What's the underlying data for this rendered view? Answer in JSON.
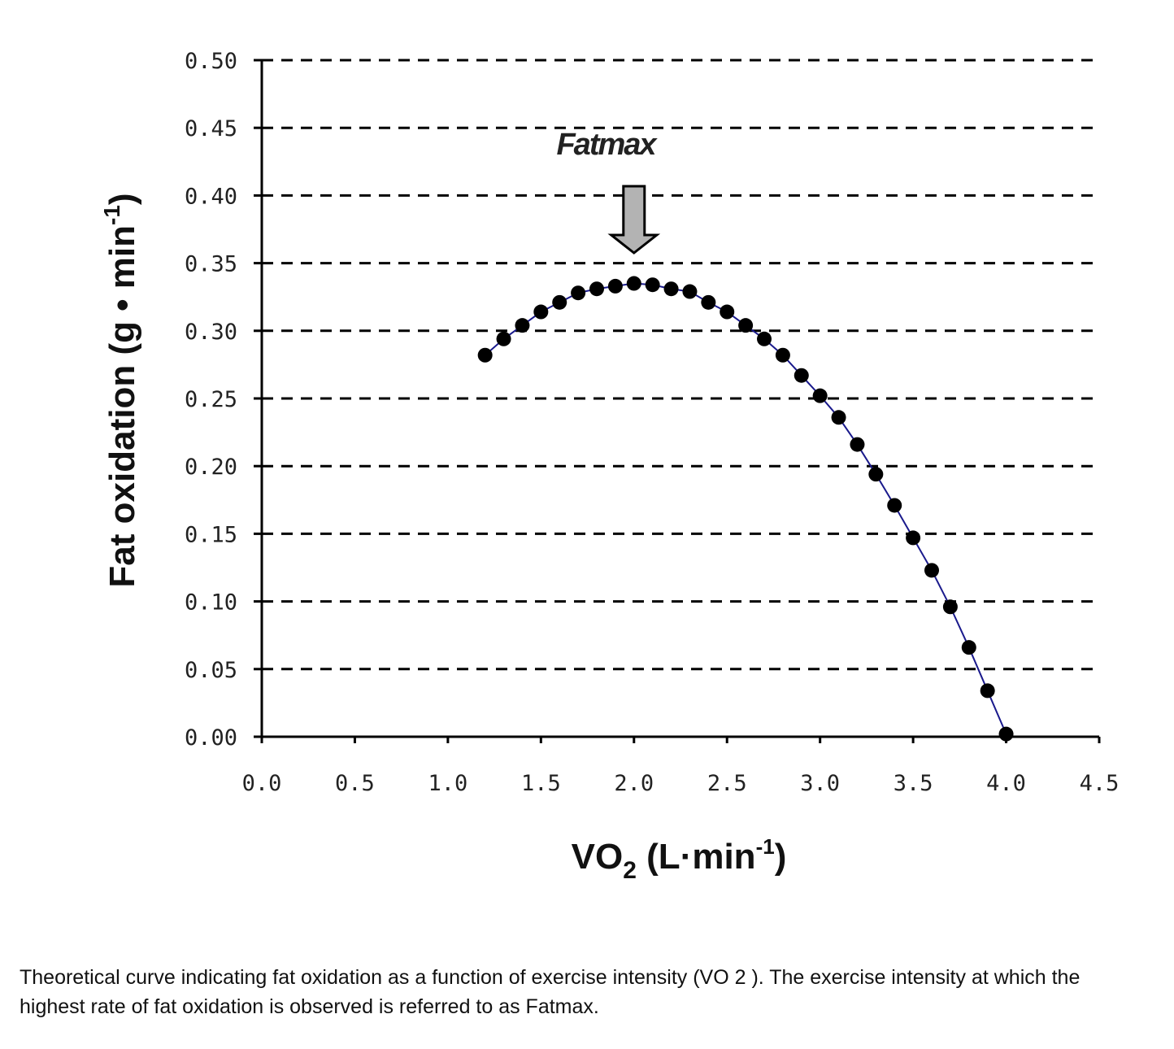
{
  "chart_data": {
    "type": "scatter",
    "title": "",
    "xlabel": "VO",
    "xlabel_sub": "2",
    "xlabel_unit_open": " (L",
    "xlabel_unit_dot": "·",
    "xlabel_unit_min": "min",
    "xlabel_unit_sup": "-1",
    "xlabel_unit_close": ")",
    "ylabel": "Fat oxidation (g • min",
    "ylabel_sup": "-1",
    "ylabel_close": ")",
    "xlim": [
      0,
      4.5
    ],
    "ylim": [
      0,
      0.5
    ],
    "xticks": [
      "0.0",
      "0.5",
      "1.0",
      "1.5",
      "2.0",
      "2.5",
      "3.0",
      "3.5",
      "4.0",
      "4.5"
    ],
    "yticks": [
      "0.00",
      "0.05",
      "0.10",
      "0.15",
      "0.20",
      "0.25",
      "0.30",
      "0.35",
      "0.40",
      "0.45",
      "0.50"
    ],
    "grid": "horizontal dashed",
    "marker_color": "#000000",
    "line_color": "#1a1a8c",
    "annotation": {
      "text": "Fatmax",
      "x": 2.0,
      "arrow_color": "#b3b3b3"
    },
    "x": [
      1.2,
      1.3,
      1.4,
      1.5,
      1.6,
      1.7,
      1.8,
      1.9,
      2.0,
      2.1,
      2.2,
      2.3,
      2.4,
      2.5,
      2.6,
      2.7,
      2.8,
      2.9,
      3.0,
      3.1,
      3.2,
      3.3,
      3.4,
      3.5,
      3.6,
      3.7,
      3.8,
      3.9,
      4.0
    ],
    "y": [
      0.282,
      0.294,
      0.304,
      0.314,
      0.321,
      0.328,
      0.331,
      0.333,
      0.335,
      0.334,
      0.331,
      0.329,
      0.321,
      0.314,
      0.304,
      0.294,
      0.282,
      0.267,
      0.252,
      0.236,
      0.216,
      0.194,
      0.171,
      0.147,
      0.123,
      0.096,
      0.066,
      0.034,
      0.002
    ]
  },
  "caption": "Theoretical curve indicating fat oxidation as a function of exercise intensity (VO 2 ). The exercise intensity at which the highest rate of fat oxidation is observed is referred to as Fatmax."
}
